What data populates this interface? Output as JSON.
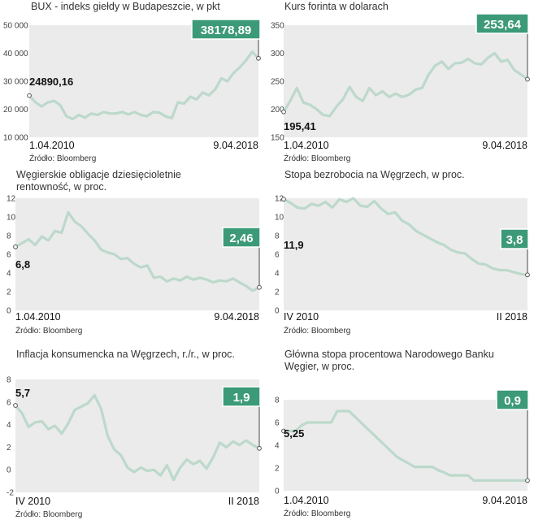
{
  "colors": {
    "plot_bg": "#ebebeb",
    "line": "#bcd9cb",
    "badge": "#3c9a78",
    "text": "#222222"
  },
  "chart_data": [
    {
      "type": "line",
      "title": "BUX - indeks giełdy w Budapeszcie, w pkt",
      "ylim": [
        10000,
        50000
      ],
      "yticks": [
        10000,
        20000,
        30000,
        40000,
        50000
      ],
      "ytick_labels": [
        "10 000",
        "20 000",
        "30 000",
        "40 000",
        "50 000"
      ],
      "x_start_label": "1.04.2010",
      "x_end_label": "9.04.2018",
      "start_value": 24890.16,
      "start_label": "24890,16",
      "end_value": 38178.89,
      "end_label": "38178,89",
      "source": "Źródło: Bloomberg",
      "values": [
        24890,
        22500,
        21000,
        22500,
        23000,
        21500,
        17500,
        16500,
        18000,
        17000,
        18500,
        18000,
        19000,
        18500,
        18500,
        19000,
        18200,
        19000,
        18000,
        17500,
        19000,
        18800,
        17500,
        16800,
        22500,
        22000,
        24500,
        23500,
        26000,
        25000,
        27000,
        31000,
        30000,
        33000,
        35000,
        37500,
        40500,
        38179
      ]
    },
    {
      "type": "line",
      "title": "Kurs forinta w dolarach",
      "ylim": [
        150,
        350
      ],
      "yticks": [
        150,
        200,
        250,
        300,
        350
      ],
      "ytick_labels": [
        "150",
        "200",
        "250",
        "300",
        "350"
      ],
      "x_start_label": "1.04.2010",
      "x_end_label": "9.04.2018",
      "start_value": 195.41,
      "start_label": "195,41",
      "end_value": 253.64,
      "end_label": "253,64",
      "source": "Źródło: Bloomberg",
      "values": [
        195,
        215,
        238,
        212,
        208,
        200,
        190,
        188,
        205,
        218,
        240,
        222,
        215,
        238,
        225,
        232,
        222,
        228,
        222,
        226,
        235,
        238,
        262,
        278,
        285,
        272,
        282,
        283,
        290,
        282,
        280,
        292,
        300,
        285,
        288,
        270,
        262,
        254
      ]
    },
    {
      "type": "line",
      "title": "Węgierskie obligacje dziesięcioletnie rentowność, w proc.",
      "ylim": [
        0,
        12
      ],
      "yticks": [
        0,
        2,
        4,
        6,
        8,
        10,
        12
      ],
      "ytick_labels": [
        "0",
        "2",
        "4",
        "6",
        "8",
        "10",
        "12"
      ],
      "x_start_label": "1.04.2010",
      "x_end_label": "9.04.2018",
      "start_value": 6.8,
      "start_label": "6,8",
      "end_value": 2.46,
      "end_label": "2,46",
      "source": "Źródło: Bloomberg",
      "values": [
        6.8,
        7.2,
        7.6,
        7.0,
        7.9,
        7.5,
        8.5,
        8.3,
        10.5,
        9.5,
        9.0,
        8.2,
        7.5,
        6.5,
        6.2,
        6.0,
        5.5,
        5.6,
        5.0,
        4.6,
        4.8,
        3.5,
        3.6,
        3.1,
        3.4,
        3.2,
        3.6,
        3.3,
        3.5,
        3.3,
        3.0,
        3.2,
        3.1,
        3.4,
        3.0,
        2.6,
        2.1,
        2.46
      ]
    },
    {
      "type": "line",
      "title": "Stopa bezrobocia na Węgrzech, w proc.",
      "ylim": [
        0,
        12
      ],
      "yticks": [
        0,
        2,
        4,
        6,
        8,
        10,
        12
      ],
      "ytick_labels": [
        "0",
        "2",
        "4",
        "6",
        "8",
        "10",
        "12"
      ],
      "x_start_label": "IV 2010",
      "x_end_label": "II 2018",
      "start_value": 11.9,
      "start_label": "11,9",
      "end_value": 3.8,
      "end_label": "3,8",
      "source": "Źródło: Bloomberg",
      "values": [
        11.9,
        11.5,
        11.0,
        10.9,
        11.4,
        11.2,
        11.6,
        11.0,
        11.9,
        11.6,
        12.0,
        11.2,
        11.1,
        11.7,
        10.9,
        10.3,
        10.5,
        9.6,
        9.2,
        8.5,
        8.1,
        7.7,
        7.3,
        7.0,
        6.5,
        6.2,
        6.1,
        5.5,
        5.0,
        4.9,
        4.5,
        4.3,
        4.3,
        4.1,
        3.9,
        3.8
      ]
    },
    {
      "type": "line",
      "title": "Inflacja konsumencka na Węgrzech, r./r., w proc.",
      "ylim": [
        -2,
        8
      ],
      "yticks": [
        -2,
        0,
        2,
        4,
        6,
        8
      ],
      "ytick_labels": [
        "-2",
        "0",
        "2",
        "4",
        "6",
        "8"
      ],
      "x_start_label": "IV 2010",
      "x_end_label": "II 2018",
      "start_value": 5.7,
      "start_label": "5,7",
      "end_value": 1.9,
      "end_label": "1,9",
      "source": "Źródło: Bloomberg",
      "values": [
        5.7,
        5.0,
        3.8,
        4.2,
        4.3,
        3.6,
        3.9,
        3.2,
        4.1,
        5.3,
        5.6,
        5.9,
        6.6,
        5.4,
        3.0,
        1.8,
        1.3,
        0.2,
        -0.2,
        0.2,
        -0.1,
        0.0,
        -0.5,
        0.4,
        -0.9,
        0.2,
        0.9,
        0.5,
        0.8,
        0.1,
        1.1,
        2.4,
        2.0,
        2.5,
        2.2,
        2.6,
        2.2,
        1.9
      ]
    },
    {
      "type": "line",
      "title": "Główna stopa procentowa Narodowego Banku Węgier, w proc.",
      "ylim": [
        0,
        8
      ],
      "yticks": [
        0,
        2,
        4,
        6,
        8
      ],
      "ytick_labels": [
        "0",
        "2",
        "4",
        "6",
        "8"
      ],
      "x_start_label": "1.04.2010",
      "x_end_label": "9.04.2018",
      "start_value": 5.25,
      "start_label": "5,25",
      "end_value": 0.9,
      "end_label": "0,9",
      "source": "Źródło: Bloomberg",
      "values": [
        5.25,
        5.25,
        5.25,
        5.75,
        6.0,
        6.0,
        6.0,
        6.0,
        6.0,
        7.0,
        7.0,
        7.0,
        6.5,
        6.0,
        5.5,
        5.0,
        4.5,
        4.0,
        3.5,
        3.0,
        2.7,
        2.4,
        2.1,
        2.1,
        2.1,
        2.1,
        1.8,
        1.6,
        1.35,
        1.35,
        1.35,
        1.35,
        0.9,
        0.9,
        0.9,
        0.9,
        0.9,
        0.9,
        0.9,
        0.9,
        0.9,
        0.9
      ]
    }
  ]
}
